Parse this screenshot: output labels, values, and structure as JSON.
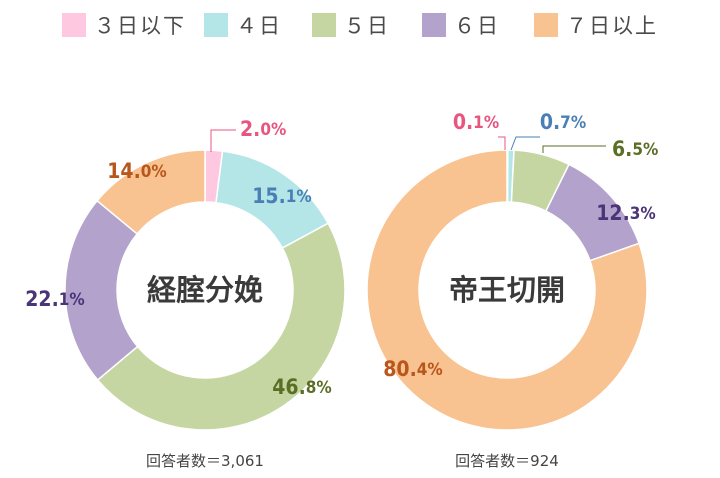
{
  "legend": [
    {
      "label": "３日以下",
      "color": "#ffc8e1"
    },
    {
      "label": "４日",
      "color": "#b4e6e8"
    },
    {
      "label": "５日",
      "color": "#c5d6a2"
    },
    {
      "label": "６日",
      "color": "#b2a2cc"
    },
    {
      "label": "７日以上",
      "color": "#f9c291"
    }
  ],
  "chart_data": [
    {
      "type": "pie",
      "title": "経腟分娩",
      "note": "回答者数＝3,061",
      "categories": [
        "３日以下",
        "４日",
        "５日",
        "６日",
        "７日以上"
      ],
      "values": [
        2.0,
        15.1,
        46.8,
        22.1,
        14.0
      ],
      "value_labels": [
        "2.0%",
        "15.1%",
        "46.8%",
        "22.1%",
        "14.0%"
      ],
      "label_colors": [
        "#e8557f",
        "#4a7fb5",
        "#5a6e26",
        "#4b3477",
        "#b8561b"
      ]
    },
    {
      "type": "pie",
      "title": "帝王切開",
      "note": "回答者数＝924",
      "categories": [
        "３日以下",
        "４日",
        "５日",
        "６日",
        "７日以上"
      ],
      "values": [
        0.1,
        0.7,
        6.5,
        12.3,
        80.4
      ],
      "value_labels": [
        "0.1%",
        "0.7%",
        "6.5%",
        "12.3%",
        "80.4%"
      ],
      "label_colors": [
        "#e8557f",
        "#4a7fb5",
        "#5a6e26",
        "#4b3477",
        "#b8561b"
      ]
    }
  ]
}
